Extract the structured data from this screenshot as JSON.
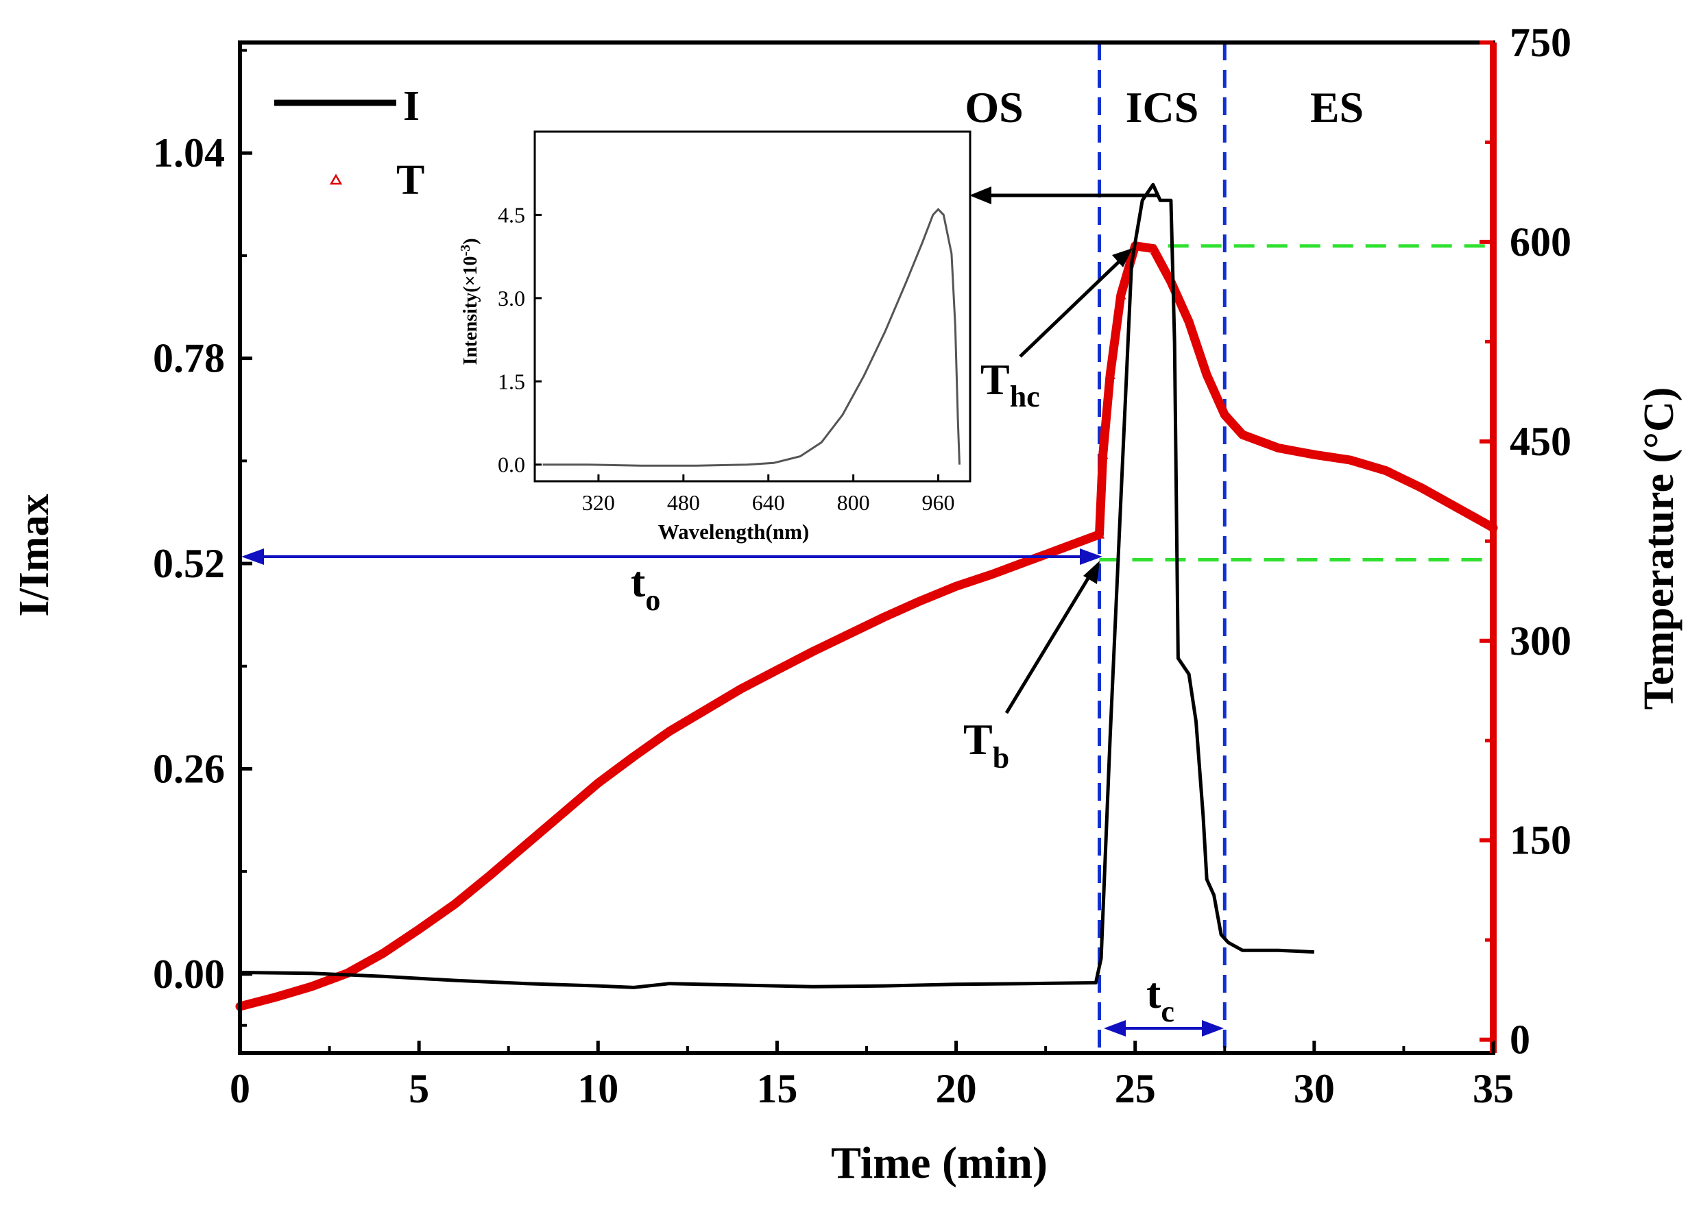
{
  "chart_data": {
    "type": "line",
    "xlabel": "Time (min)",
    "ylabel_left": "I/Imax",
    "ylabel_right": "Temperature (°C)",
    "xlim": [
      0,
      35
    ],
    "ylim_left": [
      -0.1,
      1.18
    ],
    "ylim_right": [
      -10,
      750
    ],
    "x_ticks": [
      "0",
      "5",
      "10",
      "15",
      "20",
      "25",
      "30",
      "35"
    ],
    "y_left_ticks": [
      "0.00",
      "0.26",
      "0.52",
      "0.78",
      "1.04"
    ],
    "y_right_ticks": [
      "0",
      "150",
      "300",
      "450",
      "600",
      "750"
    ],
    "legend": [
      {
        "label": "I",
        "style": "line",
        "color": "#000000"
      },
      {
        "label": "T",
        "style": "triangle-marker",
        "color": "#e00000"
      }
    ],
    "region_labels": [
      "OS",
      "ICS",
      "ES"
    ],
    "stage_boundaries_min": [
      24.0,
      27.5
    ],
    "annotations": {
      "t_o": {
        "label": "t",
        "sub": "o",
        "from_min": 0,
        "to_min": 24.0
      },
      "t_c": {
        "label": "t",
        "sub": "c",
        "from_min": 24.0,
        "to_min": 27.5
      },
      "T_b": {
        "label": "T",
        "sub": "b",
        "temperature_c": 361
      },
      "T_hc": {
        "label": "T",
        "sub": "hc",
        "temperature_c": 597
      }
    },
    "series": [
      {
        "name": "I",
        "axis": "left",
        "color": "#000000",
        "points": [
          [
            0,
            0.002
          ],
          [
            2,
            0.001
          ],
          [
            4,
            -0.003
          ],
          [
            6,
            -0.008
          ],
          [
            8,
            -0.012
          ],
          [
            10,
            -0.015
          ],
          [
            11,
            -0.017
          ],
          [
            12,
            -0.012
          ],
          [
            14,
            -0.014
          ],
          [
            16,
            -0.016
          ],
          [
            18,
            -0.015
          ],
          [
            20,
            -0.013
          ],
          [
            22,
            -0.012
          ],
          [
            23.9,
            -0.011
          ],
          [
            24.05,
            0.02
          ],
          [
            24.3,
            0.3
          ],
          [
            24.6,
            0.6
          ],
          [
            24.9,
            0.9
          ],
          [
            25.2,
            0.98
          ],
          [
            25.5,
            1.0
          ],
          [
            25.7,
            0.98
          ],
          [
            26.0,
            0.98
          ],
          [
            26.1,
            0.8
          ],
          [
            26.2,
            0.4
          ],
          [
            26.5,
            0.38
          ],
          [
            26.7,
            0.32
          ],
          [
            26.9,
            0.2
          ],
          [
            27.0,
            0.12
          ],
          [
            27.2,
            0.1
          ],
          [
            27.4,
            0.05
          ],
          [
            27.6,
            0.04
          ],
          [
            28.0,
            0.03
          ],
          [
            29.0,
            0.03
          ],
          [
            30.0,
            0.028
          ]
        ]
      },
      {
        "name": "T",
        "axis": "right",
        "color": "#e00000",
        "points": [
          [
            0,
            25
          ],
          [
            1,
            32
          ],
          [
            2,
            40
          ],
          [
            3,
            50
          ],
          [
            4,
            65
          ],
          [
            5,
            83
          ],
          [
            6,
            102
          ],
          [
            7,
            124
          ],
          [
            8,
            147
          ],
          [
            9,
            170
          ],
          [
            10,
            193
          ],
          [
            11,
            213
          ],
          [
            12,
            232
          ],
          [
            13,
            248
          ],
          [
            14,
            264
          ],
          [
            15,
            278
          ],
          [
            16,
            292
          ],
          [
            17,
            305
          ],
          [
            18,
            318
          ],
          [
            19,
            330
          ],
          [
            20,
            341
          ],
          [
            21,
            350
          ],
          [
            22,
            360
          ],
          [
            23,
            370
          ],
          [
            24,
            380
          ],
          [
            24.1,
            440
          ],
          [
            24.3,
            500
          ],
          [
            24.6,
            560
          ],
          [
            25,
            597
          ],
          [
            25.5,
            595
          ],
          [
            26,
            570
          ],
          [
            26.5,
            540
          ],
          [
            27,
            500
          ],
          [
            27.5,
            470
          ],
          [
            28,
            455
          ],
          [
            29,
            445
          ],
          [
            30,
            440
          ],
          [
            31,
            436
          ],
          [
            32,
            428
          ],
          [
            33,
            415
          ],
          [
            34,
            400
          ],
          [
            35,
            385
          ]
        ]
      }
    ]
  },
  "inset": {
    "xlabel": "Wavelength(nm)",
    "ylabel": "Intensity(×10",
    "ylabel_exp": "-3",
    "ylabel_end": ")",
    "x_ticks": [
      "320",
      "480",
      "640",
      "800",
      "960"
    ],
    "y_ticks": [
      "0.0",
      "1.5",
      "3.0",
      "4.5"
    ],
    "xlim": [
      200,
      1020
    ],
    "ylim": [
      -0.3,
      6.0
    ],
    "points": [
      [
        215,
        0.0
      ],
      [
        300,
        0.0
      ],
      [
        400,
        -0.02
      ],
      [
        500,
        -0.02
      ],
      [
        600,
        0.0
      ],
      [
        650,
        0.03
      ],
      [
        700,
        0.15
      ],
      [
        740,
        0.4
      ],
      [
        780,
        0.9
      ],
      [
        820,
        1.6
      ],
      [
        860,
        2.4
      ],
      [
        900,
        3.3
      ],
      [
        930,
        4.0
      ],
      [
        950,
        4.5
      ],
      [
        960,
        4.6
      ],
      [
        970,
        4.5
      ],
      [
        985,
        3.8
      ],
      [
        992,
        2.5
      ],
      [
        997,
        0.8
      ],
      [
        1000,
        0.0
      ]
    ]
  }
}
